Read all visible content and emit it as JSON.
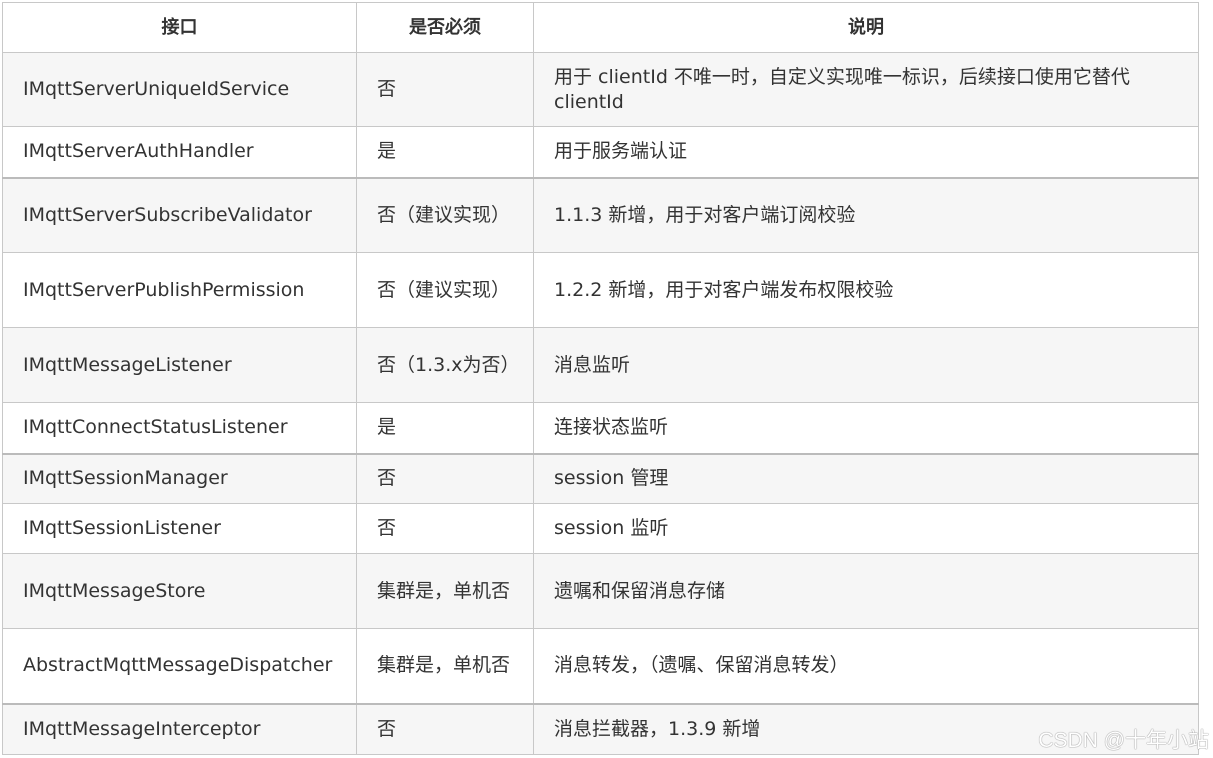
{
  "headers": [
    "接口",
    "是否必须",
    "说明"
  ],
  "rows": [
    {
      "name": "IMqttServerUniqueIdService",
      "required": "否",
      "desc": "用于 clientId 不唯一时，自定义实现唯一标识，后续接口使用它替代 clientId"
    },
    {
      "name": "IMqttServerAuthHandler",
      "required": "是",
      "desc": "用于服务端认证"
    },
    {
      "name": "IMqttServerSubscribeValidator",
      "required": "否（建议实现）",
      "desc": "1.1.3 新增，用于对客户端订阅校验"
    },
    {
      "name": "IMqttServerPublishPermission",
      "required": "否（建议实现）",
      "desc": "1.2.2 新增，用于对客户端发布权限校验"
    },
    {
      "name": "IMqttMessageListener",
      "required": "否（1.3.x为否）",
      "desc": "消息监听"
    },
    {
      "name": "IMqttConnectStatusListener",
      "required": "是",
      "desc": "连接状态监听"
    },
    {
      "name": "IMqttSessionManager",
      "required": "否",
      "desc": "session 管理"
    },
    {
      "name": "IMqttSessionListener",
      "required": "否",
      "desc": "session 监听"
    },
    {
      "name": "IMqttMessageStore",
      "required": "集群是，单机否",
      "desc": "遗嘱和保留消息存储"
    },
    {
      "name": "AbstractMqttMessageDispatcher",
      "required": "集群是，单机否",
      "desc": "消息转发，（遗嘱、保留消息转发）"
    },
    {
      "name": "IMqttMessageInterceptor",
      "required": "否",
      "desc": "消息拦截器，1.3.9 新增"
    }
  ],
  "watermark": "CSDN @十年小站"
}
